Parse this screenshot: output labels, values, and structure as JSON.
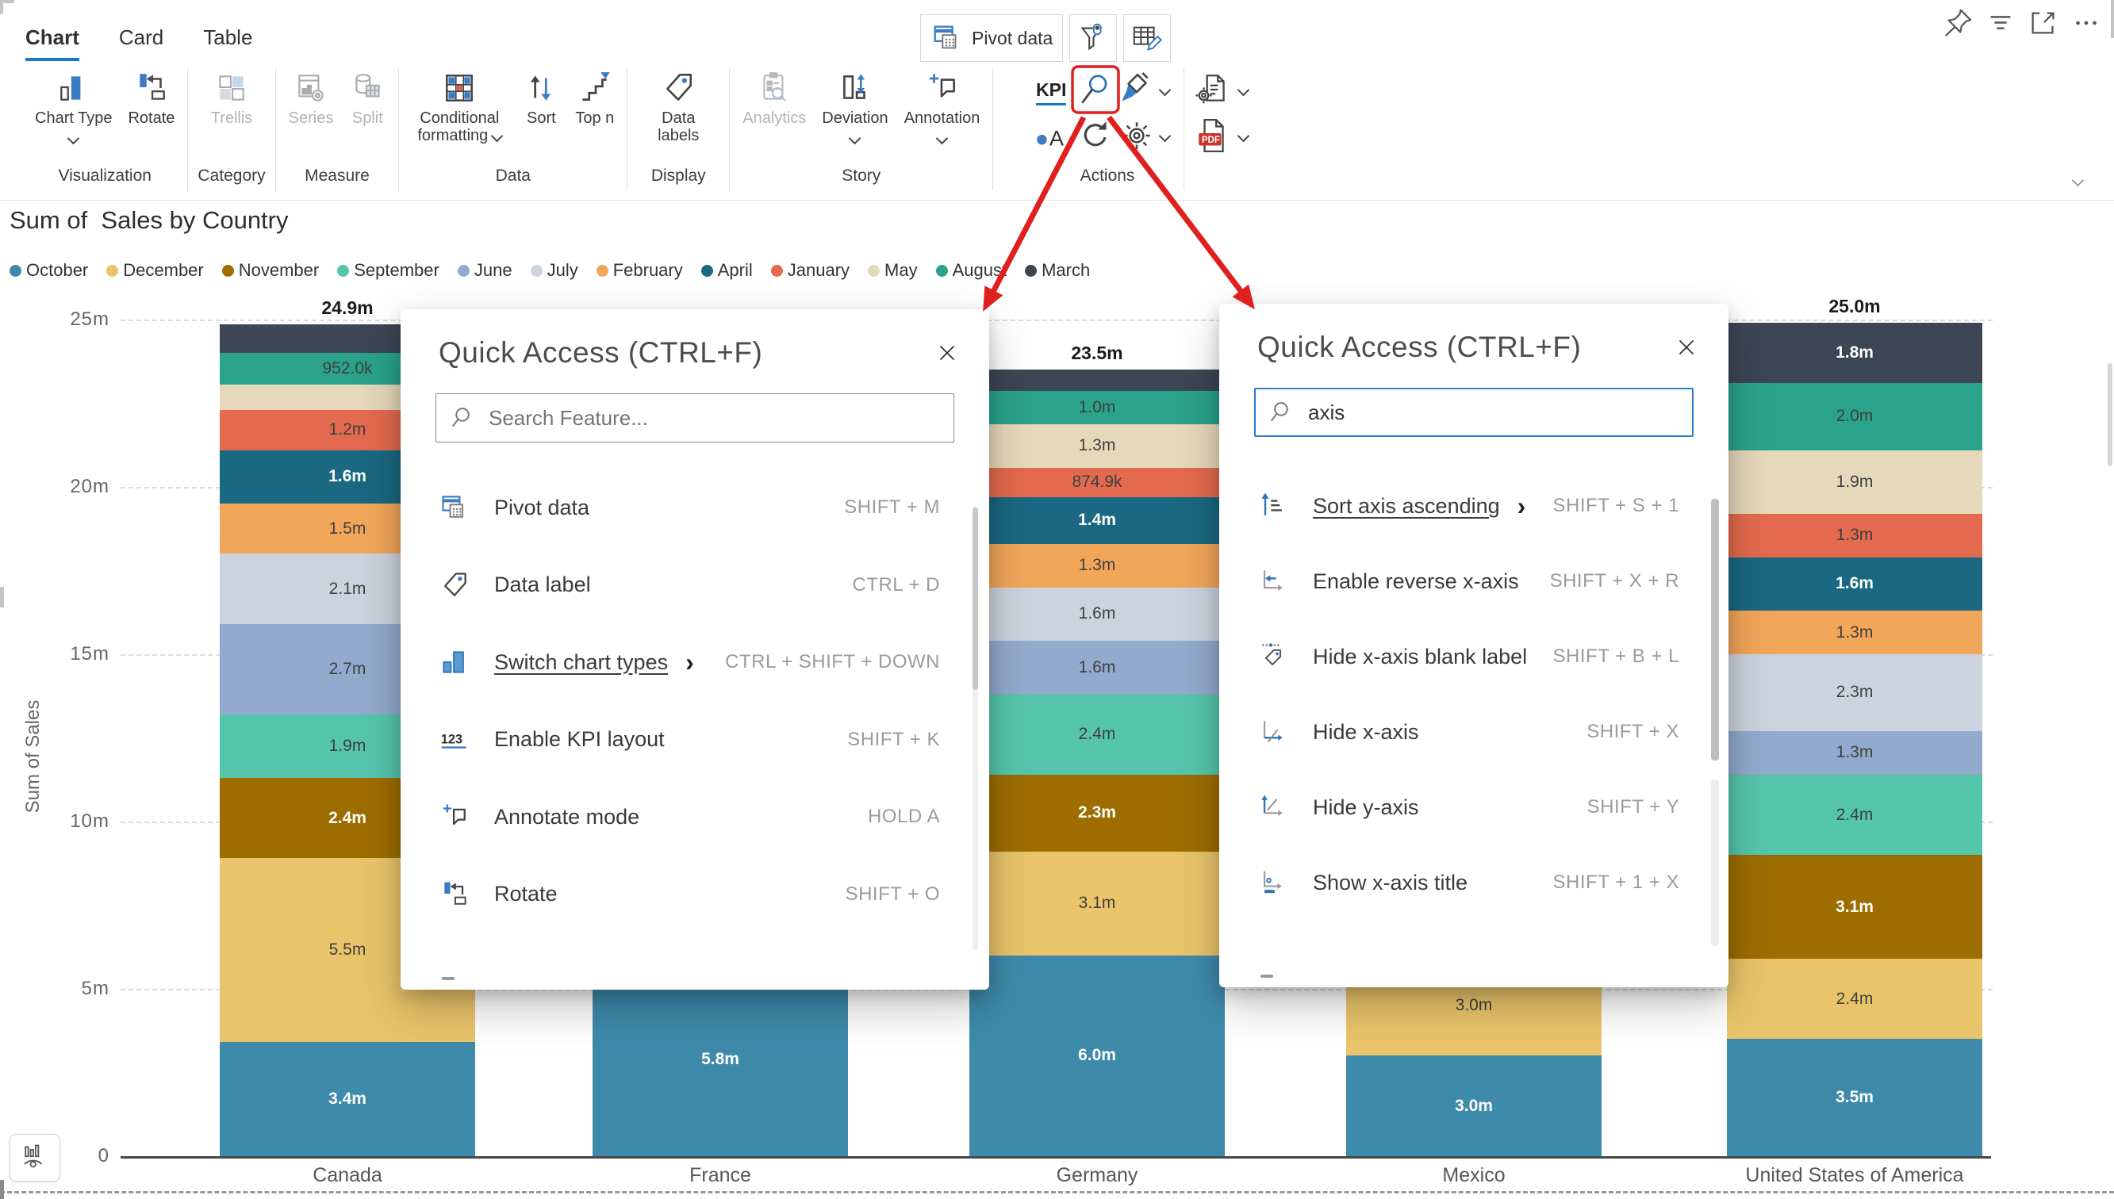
{
  "window": {
    "tabs": [
      {
        "label": "Chart",
        "active": true
      },
      {
        "label": "Card",
        "active": false
      },
      {
        "label": "Table",
        "active": false
      }
    ],
    "quick_toolbar": {
      "pivot_label": "Pivot data",
      "extra_icons": [
        "filter",
        "table-edit"
      ]
    },
    "header_icons": [
      "pin",
      "lines",
      "expand",
      "ellipsis"
    ]
  },
  "ribbon": {
    "groups": [
      {
        "label": "Visualization",
        "buttons": [
          {
            "label": "Chart Type",
            "icon": "chart-type",
            "chevron": "below"
          },
          {
            "label": "Rotate",
            "icon": "rotate"
          }
        ]
      },
      {
        "label": "Category",
        "buttons": [
          {
            "label": "Trellis",
            "icon": "trellis",
            "disabled": true
          }
        ]
      },
      {
        "label": "Measure",
        "buttons": [
          {
            "label": "Series",
            "icon": "series",
            "disabled": true
          },
          {
            "label": "Split",
            "icon": "split",
            "disabled": true
          }
        ]
      },
      {
        "label": "Data",
        "buttons": [
          {
            "label": "Conditional formatting",
            "icon": "cond-format",
            "chevron": "inline",
            "wrap": 120
          },
          {
            "label": "Sort",
            "icon": "sort"
          },
          {
            "label": "Top n",
            "icon": "top-n"
          }
        ]
      },
      {
        "label": "Display",
        "buttons": [
          {
            "label": "Data labels",
            "icon": "data-labels",
            "wrap": 96
          }
        ]
      },
      {
        "label": "Story",
        "buttons": [
          {
            "label": "Analytics",
            "icon": "analytics",
            "disabled": true
          },
          {
            "label": "Deviation",
            "icon": "deviation",
            "chevron": "below"
          },
          {
            "label": "Annotation",
            "icon": "annotation",
            "chevron": "below"
          }
        ]
      }
    ],
    "actions": {
      "kpi_label": "KPI",
      "group_label": "Actions",
      "row1_icons": [
        "kpi-search",
        "paint"
      ],
      "row2_icons": [
        "circle-a",
        "refresh",
        "gear"
      ],
      "export_icons": [
        "doc-gear",
        "pdf"
      ]
    }
  },
  "chart_data": {
    "type": "bar",
    "stacked": true,
    "title": "Sum of  Sales by Country",
    "ylabel": "Sum of Sales",
    "xlabel": "",
    "ylim_millions": [
      0,
      25
    ],
    "grid": true,
    "legend_position": "top",
    "yticks": [
      {
        "label": "25m",
        "value": 25
      },
      {
        "label": "20m",
        "value": 20
      },
      {
        "label": "15m",
        "value": 15
      },
      {
        "label": "10m",
        "value": 10
      },
      {
        "label": "5m",
        "value": 5
      },
      {
        "label": "0",
        "value": 0
      }
    ],
    "legend_order": [
      "October",
      "December",
      "November",
      "September",
      "June",
      "July",
      "February",
      "April",
      "January",
      "May",
      "August",
      "March"
    ],
    "series_colors": {
      "October": "#3e8aab",
      "December": "#e9c46a",
      "November": "#9d6d00",
      "September": "#55c6ac",
      "June": "#92aacd",
      "July": "#ccd3de",
      "February": "#f2a65a",
      "April": "#1a6881",
      "January": "#e36a4e",
      "May": "#e6d8ba",
      "August": "#2aa38a",
      "March": "#3d4655"
    },
    "white_label_months": [
      "October",
      "November",
      "April",
      "March"
    ],
    "categories": [
      "Canada",
      "France",
      "Germany",
      "Mexico",
      "United States of America"
    ],
    "bars": [
      {
        "country": "Canada",
        "total_label": "24.9m",
        "segments": [
          {
            "month": "October",
            "value": 3.4,
            "label": "3.4m"
          },
          {
            "month": "December",
            "value": 5.5,
            "label": "5.5m"
          },
          {
            "month": "November",
            "value": 2.4,
            "label": "2.4m"
          },
          {
            "month": "September",
            "value": 1.9,
            "label": "1.9m"
          },
          {
            "month": "June",
            "value": 2.7,
            "label": "2.7m"
          },
          {
            "month": "July",
            "value": 2.1,
            "label": "2.1m"
          },
          {
            "month": "February",
            "value": 1.5,
            "label": "1.5m"
          },
          {
            "month": "April",
            "value": 1.6,
            "label": "1.6m"
          },
          {
            "month": "January",
            "value": 1.2,
            "label": "1.2m"
          },
          {
            "month": "May",
            "value": 0.75,
            "label": ""
          },
          {
            "month": "August",
            "value": 0.952,
            "label": "952.0k"
          },
          {
            "month": "March",
            "value": 0.85,
            "label": ""
          }
        ]
      },
      {
        "country": "France",
        "total_label": "",
        "occluded_by_dialog": true,
        "segments": [
          {
            "month": "October",
            "value": 5.8,
            "label": "5.8m"
          }
        ]
      },
      {
        "country": "Germany",
        "total_label": "23.5m",
        "segments": [
          {
            "month": "October",
            "value": 6.0,
            "label": "6.0m"
          },
          {
            "month": "December",
            "value": 3.1,
            "label": "3.1m"
          },
          {
            "month": "November",
            "value": 2.3,
            "label": "2.3m"
          },
          {
            "month": "September",
            "value": 2.4,
            "label": "2.4m"
          },
          {
            "month": "June",
            "value": 1.6,
            "label": "1.6m"
          },
          {
            "month": "July",
            "value": 1.6,
            "label": "1.6m"
          },
          {
            "month": "February",
            "value": 1.3,
            "label": "1.3m"
          },
          {
            "month": "April",
            "value": 1.4,
            "label": "1.4m"
          },
          {
            "month": "January",
            "value": 0.8749,
            "label": "874.9k"
          },
          {
            "month": "May",
            "value": 1.3,
            "label": "1.3m"
          },
          {
            "month": "August",
            "value": 1.0,
            "label": "1.0m"
          },
          {
            "month": "March",
            "value": 0.625,
            "label": ""
          }
        ]
      },
      {
        "country": "Mexico",
        "total_label": "",
        "occluded_by_dialog": true,
        "segments": [
          {
            "month": "October",
            "value": 3.0,
            "label": "3.0m"
          },
          {
            "month": "December",
            "value": 3.0,
            "label": "3.0m"
          }
        ]
      },
      {
        "country": "United States of America",
        "total_label": "25.0m",
        "segments": [
          {
            "month": "October",
            "value": 3.5,
            "label": "3.5m"
          },
          {
            "month": "December",
            "value": 2.4,
            "label": "2.4m"
          },
          {
            "month": "November",
            "value": 3.1,
            "label": "3.1m"
          },
          {
            "month": "September",
            "value": 2.4,
            "label": "2.4m"
          },
          {
            "month": "June",
            "value": 1.3,
            "label": "1.3m"
          },
          {
            "month": "July",
            "value": 2.3,
            "label": "2.3m"
          },
          {
            "month": "February",
            "value": 1.3,
            "label": "1.3m"
          },
          {
            "month": "April",
            "value": 1.6,
            "label": "1.6m"
          },
          {
            "month": "January",
            "value": 1.3,
            "label": "1.3m"
          },
          {
            "month": "May",
            "value": 1.9,
            "label": "1.9m"
          },
          {
            "month": "August",
            "value": 2.0,
            "label": "2.0m"
          },
          {
            "month": "March",
            "value": 1.8,
            "label": "1.8m"
          }
        ]
      }
    ]
  },
  "dialogs": [
    {
      "title": "Quick Access (CTRL+F)",
      "search": {
        "placeholder": "Search Feature...",
        "value": "",
        "focused": false
      },
      "items": [
        {
          "icon": "pivot",
          "label": "Pivot data",
          "shortcut": "SHIFT + M"
        },
        {
          "icon": "data-labels",
          "label": "Data label",
          "shortcut": "CTRL + D"
        },
        {
          "icon": "chart-bars",
          "label": "Switch chart types",
          "shortcut": "CTRL + SHIFT + DOWN",
          "link": true,
          "submenu": true
        },
        {
          "icon": "one23",
          "label": "Enable KPI layout",
          "shortcut": "SHIFT + K"
        },
        {
          "icon": "annotation",
          "label": "Annotate mode",
          "shortcut": "HOLD A"
        },
        {
          "icon": "rotate",
          "label": "Rotate",
          "shortcut": "SHIFT + O"
        }
      ]
    },
    {
      "title": "Quick Access (CTRL+F)",
      "search": {
        "placeholder": "",
        "value": "axis",
        "focused": true
      },
      "items": [
        {
          "icon": "sort-axis",
          "label": "Sort axis ascending",
          "shortcut": "SHIFT + S + 1",
          "link": true,
          "submenu": true
        },
        {
          "icon": "reverse-x",
          "label": "Enable reverse x-axis",
          "shortcut": "SHIFT + X + R"
        },
        {
          "icon": "hide-blank",
          "label": "Hide x-axis blank label",
          "shortcut": "SHIFT + B + L"
        },
        {
          "icon": "hide-x",
          "label": "Hide x-axis",
          "shortcut": "SHIFT + X"
        },
        {
          "icon": "hide-y",
          "label": "Hide y-axis",
          "shortcut": "SHIFT + Y"
        },
        {
          "icon": "show-x-title",
          "label": "Show x-axis title",
          "shortcut": "SHIFT + 1 + X"
        }
      ]
    }
  ],
  "colors": {
    "accent_blue": "#2b7cd3",
    "tab_underline": "#1578d2",
    "annotation_red": "#e01f1f",
    "baseline": "#474747"
  }
}
